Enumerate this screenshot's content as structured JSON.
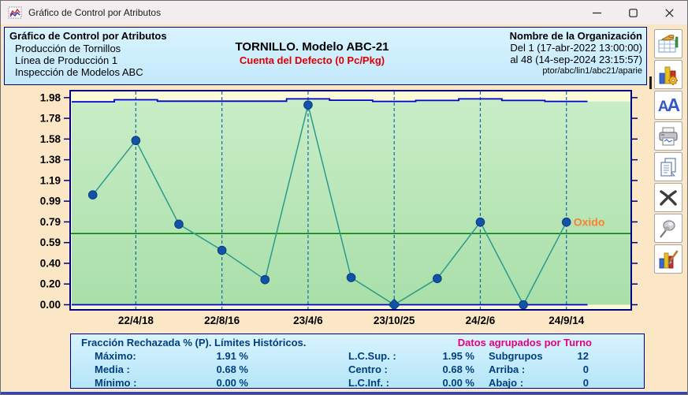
{
  "window": {
    "title": "Gráfico de Control por Atributos",
    "controls": {
      "minimize": "minimize",
      "maximize": "maximize",
      "close": "close"
    }
  },
  "header": {
    "left": {
      "title": "Gráfico de Control por Atributos",
      "lines": [
        "Producción de Tornillos",
        "Línea de Producción 1",
        "Inspección de Modelos ABC"
      ]
    },
    "center": {
      "title": "TORNILLO. Modelo ABC-21",
      "subtitle": "Cuenta del Defecto (0 Pc/Pkg)"
    },
    "right": {
      "title": "Nombre de la Organización",
      "line1": "Del 1 (17-abr-2022  13:00:00)",
      "line2": "al 48 (14-sep-2024  23:15:57)",
      "path": "ptor/abc/lin1/abc21/aparie"
    }
  },
  "toolbar": {
    "buttons": [
      {
        "name": "data-table"
      },
      {
        "name": "chart-settings"
      },
      {
        "name": "fonts",
        "label_a1": "A",
        "label_a2": "A"
      },
      {
        "name": "print"
      },
      {
        "name": "copy-pages"
      },
      {
        "name": "delete"
      },
      {
        "name": "pin"
      },
      {
        "name": "chart-style"
      }
    ]
  },
  "chart_data": {
    "type": "line",
    "subtype": "attribute-control-chart",
    "x_labels": [
      "22/4/18",
      "22/8/16",
      "23/4/6",
      "23/10/25",
      "24/2/6",
      "24/9/14"
    ],
    "y_ticks": [
      "1.98",
      "1.78",
      "1.58",
      "1.38",
      "1.19",
      "0.99",
      "0.79",
      "0.59",
      "0.40",
      "0.20",
      "0.00"
    ],
    "ylim": [
      0,
      1.98
    ],
    "n_subgroups": 12,
    "values": [
      1.05,
      1.57,
      0.77,
      0.52,
      0.24,
      1.91,
      0.26,
      0.0,
      0.25,
      0.79,
      0.0,
      0.79
    ],
    "ucl_steps": [
      1.94,
      1.96,
      1.946,
      1.946,
      1.946,
      1.968,
      1.955,
      1.944,
      1.953,
      1.968,
      1.953,
      1.944
    ],
    "ucl_nominal": 1.95,
    "lcl": 0.0,
    "center": 0.68,
    "diamond_index": 7,
    "annotation": {
      "text": "Oxido",
      "point_index": 11
    },
    "grid": "vertical-dashed",
    "colors": {
      "plot_bg": "#fbfbd8",
      "zone_top": "#c9edc7",
      "zone_bottom": "#a9dfa9",
      "border": "#000080",
      "limits": "#0000cc",
      "center": "#007d00",
      "grid": "#1568a8",
      "series": "#2a9a8c",
      "marker": "#1253a8",
      "marker_edge": "#0a3c7d",
      "annotation": "#ff7f2b",
      "tick_text": "#000000"
    }
  },
  "stats": {
    "title_left": "Fracción Rechazada % (P). Límites Históricos.",
    "title_right": "Datos agrupados por Turno",
    "col1": [
      {
        "label": "Máximo:",
        "value": "1.91 %"
      },
      {
        "label": "Media :",
        "value": "0.68 %"
      },
      {
        "label": "Mínimo :",
        "value": "0.00 %"
      }
    ],
    "col2": [
      {
        "label": "L.C.Sup. :",
        "value": "1.95 %"
      },
      {
        "label": "Centro :",
        "value": "0.68 %"
      },
      {
        "label": "L.C.Inf. :",
        "value": "0.00 %"
      }
    ],
    "col3": [
      {
        "label": "Subgrupos",
        "value": "12"
      },
      {
        "label": "Arriba :",
        "value": "0"
      },
      {
        "label": "Abajo :",
        "value": "0"
      }
    ]
  }
}
